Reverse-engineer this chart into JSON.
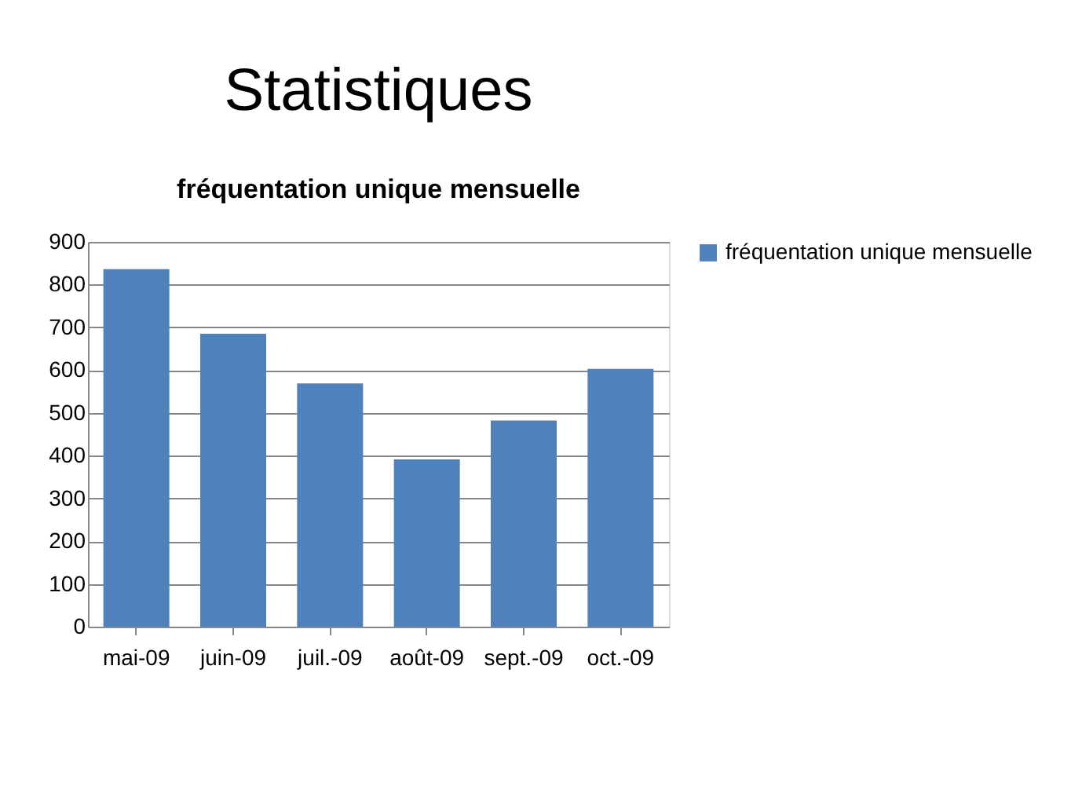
{
  "chart_data": {
    "type": "bar",
    "title": "Statistiques",
    "subtitle": "fréquentation unique mensuelle",
    "categories": [
      "mai-09",
      "juin-09",
      "juil.-09",
      "août-09",
      "sept.-09",
      "oct.-09"
    ],
    "series": [
      {
        "name": "fréquentation unique mensuelle",
        "color": "#4f81bd",
        "values": [
          836,
          685,
          569,
          391,
          482,
          603
        ]
      }
    ],
    "ylim": [
      0,
      900
    ],
    "yticks": [
      0,
      100,
      200,
      300,
      400,
      500,
      600,
      700,
      800,
      900
    ],
    "grid": "y",
    "legend": "right"
  }
}
